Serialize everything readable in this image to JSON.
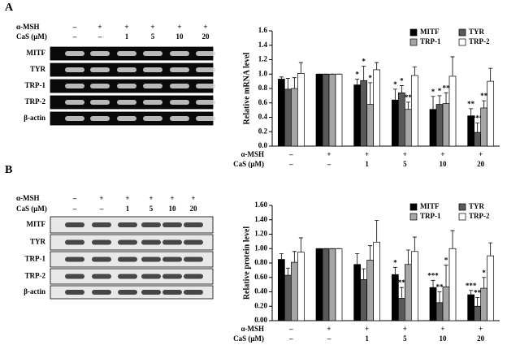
{
  "panel_letters": [
    "A",
    "B"
  ],
  "gels": [
    {
      "header_rows": [
        {
          "label": "α-MSH",
          "values": [
            "–",
            "+",
            "+",
            "+",
            "+",
            "+"
          ]
        },
        {
          "label": "CaS (μM)",
          "values": [
            "–",
            "–",
            "1",
            "5",
            "10",
            "20"
          ]
        }
      ],
      "bands": [
        "MITF",
        "TYR",
        "TRP-1",
        "TRP-2",
        "β-actin"
      ]
    },
    {
      "header_rows": [
        {
          "label": "α-MSH",
          "values": [
            "–",
            "+",
            "+",
            "+",
            "+",
            "+"
          ]
        },
        {
          "label": "CaS (μM)",
          "values": [
            "–",
            "–",
            "1",
            "5",
            "10",
            "20"
          ]
        }
      ],
      "bands": [
        "MITF",
        "TYR",
        "TRP-1",
        "TRP-2",
        "β-actin"
      ]
    }
  ],
  "chart_data": [
    {
      "type": "bar",
      "y_label": "Relative mRNA level",
      "category_rows": [
        {
          "label": "α-MSH",
          "values": [
            "–",
            "+",
            "+",
            "+",
            "+",
            "+"
          ]
        },
        {
          "label": "CaS (μM)",
          "values": [
            "–",
            "–",
            "1",
            "5",
            "10",
            "20"
          ]
        }
      ],
      "ylim": [
        0,
        1.6
      ],
      "yticks": [
        {
          "value": 0,
          "label": "0.0"
        },
        0.2,
        0.4,
        0.6,
        0.8,
        {
          "value": 1,
          "label": "1.0"
        },
        1.2,
        1.4,
        1.6
      ],
      "legend": "top-right",
      "series": [
        {
          "name": "MITF",
          "color": "#000000",
          "values": [
            0.93,
            1.0,
            0.85,
            0.64,
            0.51,
            0.42
          ],
          "errors": [
            0.03,
            0,
            0.08,
            0.15,
            0.18,
            0.1
          ],
          "significance": [
            null,
            null,
            "*",
            "*",
            "*",
            "**"
          ]
        },
        {
          "name": "TYR",
          "color": "#595959",
          "values": [
            0.79,
            1.0,
            0.91,
            0.74,
            0.58,
            0.19
          ],
          "errors": [
            0.15,
            0,
            0.2,
            0.1,
            0.12,
            0.13
          ],
          "significance": [
            null,
            null,
            "*",
            "*",
            "*",
            "***"
          ]
        },
        {
          "name": "TRP-1",
          "color": "#a6a6a6",
          "values": [
            0.8,
            1.0,
            0.58,
            0.51,
            0.59,
            0.53
          ],
          "errors": [
            0.15,
            0,
            0.3,
            0.1,
            0.15,
            0.1
          ],
          "significance": [
            null,
            null,
            "*",
            "**",
            "**",
            "**"
          ]
        },
        {
          "name": "TRP-2",
          "color": "#ffffff",
          "values": [
            1.01,
            1.0,
            1.06,
            0.98,
            0.97,
            0.9
          ],
          "errors": [
            0.15,
            0,
            0.1,
            0.12,
            0.27,
            0.18
          ]
        }
      ]
    },
    {
      "type": "bar",
      "y_label": "Relative protein level",
      "category_rows": [
        {
          "label": "α-MSH",
          "values": [
            "–",
            "+",
            "+",
            "+",
            "+",
            "+"
          ]
        },
        {
          "label": "CaS (μM)",
          "values": [
            "–",
            "–",
            "1",
            "5",
            "10",
            "20"
          ]
        }
      ],
      "ylim": [
        0,
        1.6
      ],
      "yticks": [
        {
          "value": 0,
          "label": "0.00"
        },
        {
          "value": 0.2,
          "label": "0.20"
        },
        {
          "value": 0.4,
          "label": "0.40"
        },
        {
          "value": 0.6,
          "label": "0.60"
        },
        {
          "value": 0.8,
          "label": "0.80"
        },
        {
          "value": 1,
          "label": "1.00"
        },
        {
          "value": 1.2,
          "label": "1.20"
        },
        {
          "value": 1.4,
          "label": "1.40"
        },
        {
          "value": 1.6,
          "label": "1.60"
        }
      ],
      "legend": "top-right",
      "series": [
        {
          "name": "MITF",
          "color": "#000000",
          "values": [
            0.85,
            1.0,
            0.78,
            0.64,
            0.46,
            0.36
          ],
          "errors": [
            0.08,
            0,
            0.15,
            0.1,
            0.1,
            0.06
          ],
          "significance": [
            null,
            null,
            null,
            "*",
            "***",
            "***"
          ]
        },
        {
          "name": "TYR",
          "color": "#595959",
          "values": [
            0.63,
            1.0,
            0.57,
            0.31,
            0.25,
            0.2
          ],
          "errors": [
            0.1,
            0,
            0.15,
            0.15,
            0.15,
            0.12
          ],
          "significance": [
            null,
            null,
            null,
            "**",
            "**",
            "**"
          ]
        },
        {
          "name": "TRP-1",
          "color": "#a6a6a6",
          "values": [
            0.81,
            1.0,
            0.84,
            0.78,
            0.47,
            0.45
          ],
          "errors": [
            0.15,
            0,
            0.2,
            0.2,
            0.3,
            0.15
          ],
          "significance": [
            null,
            null,
            null,
            null,
            "*",
            "*"
          ]
        },
        {
          "name": "TRP-2",
          "color": "#ffffff",
          "values": [
            0.95,
            1.0,
            1.09,
            0.96,
            1.0,
            0.9
          ],
          "errors": [
            0.2,
            0,
            0.3,
            0.2,
            0.25,
            0.18
          ]
        }
      ]
    }
  ]
}
